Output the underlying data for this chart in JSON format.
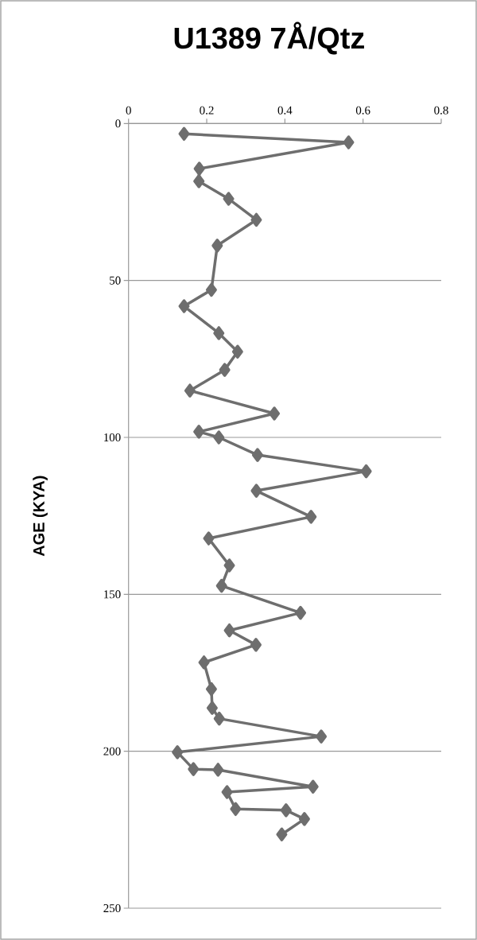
{
  "chart_data": {
    "type": "line",
    "title": "U1389 7Å/Qtz",
    "ylabel": "AGE (KYA)",
    "xlim": [
      0,
      0.8
    ],
    "xticks": [
      0,
      0.2,
      0.4,
      0.6,
      0.8
    ],
    "ylim": [
      250,
      0
    ],
    "yticks": [
      0,
      50,
      100,
      150,
      200,
      250
    ],
    "grid": "y",
    "marker": "diamond",
    "line_style": "solid",
    "series": [
      {
        "color": "#6e6e6e",
        "x": [
          0.142,
          0.563,
          0.181,
          0.18,
          0.256,
          0.327,
          0.227,
          0.212,
          0.142,
          0.231,
          0.279,
          0.246,
          0.157,
          0.373,
          0.18,
          0.231,
          0.33,
          0.608,
          0.327,
          0.467,
          0.205,
          0.258,
          0.238,
          0.44,
          0.258,
          0.326,
          0.193,
          0.212,
          0.214,
          0.232,
          0.493,
          0.125,
          0.166,
          0.229,
          0.472,
          0.252,
          0.274,
          0.403,
          0.45,
          0.392
        ],
        "values": [
          3.3,
          6.0,
          14.4,
          18.4,
          24.0,
          30.7,
          38.9,
          53.0,
          58.2,
          66.8,
          72.7,
          78.5,
          85.1,
          92.4,
          98.2,
          100.0,
          105.6,
          110.8,
          117.0,
          125.3,
          132.2,
          140.8,
          147.3,
          155.9,
          161.5,
          166.1,
          171.7,
          180.2,
          186.2,
          189.6,
          195.3,
          200.3,
          205.7,
          205.9,
          211.3,
          213.0,
          218.4,
          218.8,
          221.6,
          226.5
        ]
      }
    ]
  }
}
